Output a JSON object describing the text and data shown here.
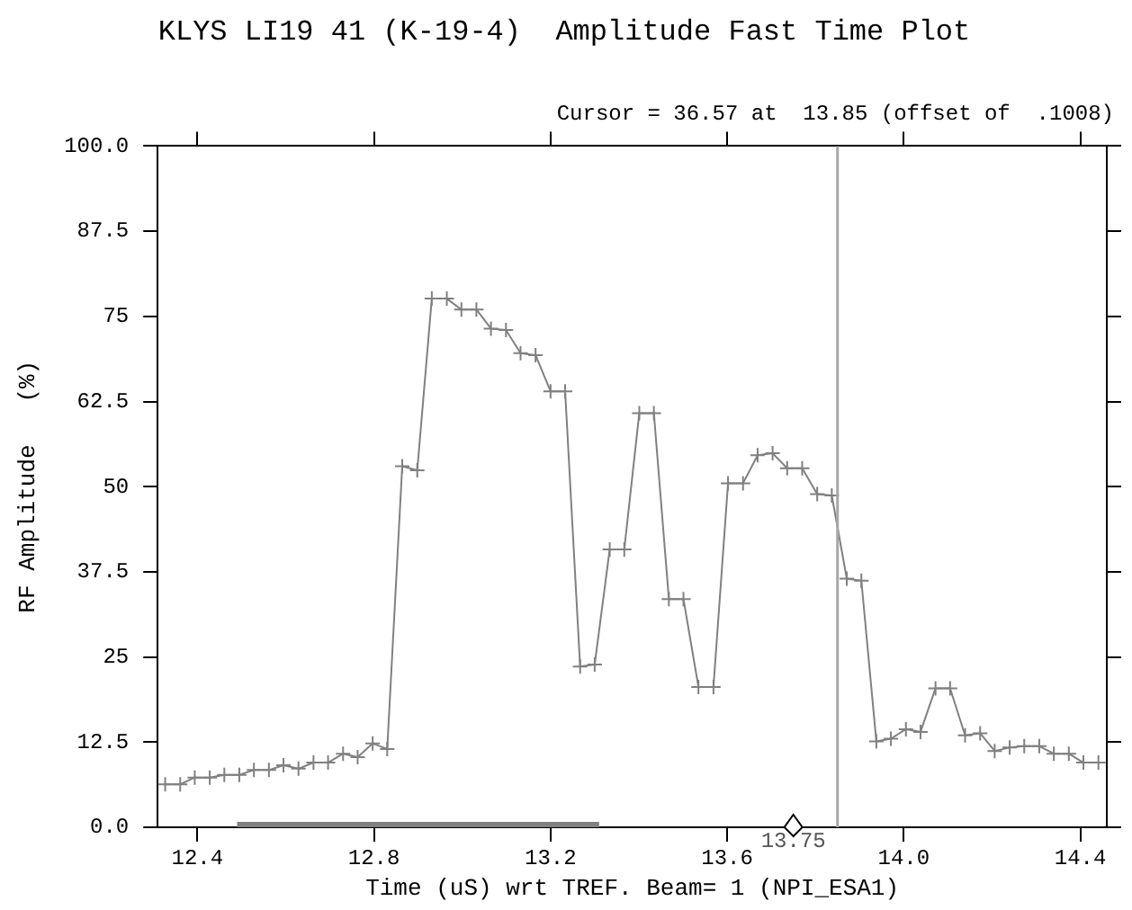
{
  "chart_data": {
    "type": "line",
    "title": "KLYS LI19 41 (K-19-4)  Amplitude Fast Time Plot",
    "xlabel": "Time (uS) wrt TREF. Beam= 1 (NPI_ESA1)",
    "ylabel": "RF Amplitude   (%)",
    "x": [
      12.327,
      12.361,
      12.394,
      12.428,
      12.461,
      12.495,
      12.528,
      12.562,
      12.595,
      12.629,
      12.663,
      12.696,
      12.73,
      12.763,
      12.797,
      12.83,
      12.864,
      12.898,
      12.931,
      12.965,
      12.998,
      13.032,
      13.065,
      13.099,
      13.132,
      13.166,
      13.2,
      13.233,
      13.267,
      13.3,
      13.334,
      13.367,
      13.401,
      13.434,
      13.468,
      13.501,
      13.535,
      13.569,
      13.602,
      13.636,
      13.669,
      13.703,
      13.736,
      13.77,
      13.804,
      13.837,
      13.871,
      13.904,
      13.938,
      13.971,
      14.005,
      14.038,
      14.072,
      14.105,
      14.139,
      14.173,
      14.206,
      14.24,
      14.273,
      14.307,
      14.34,
      14.374,
      14.407,
      14.441
    ],
    "series": [
      {
        "color": "#808080",
        "values": [
          6.3,
          6.3,
          7.3,
          7.3,
          7.7,
          7.7,
          8.4,
          8.4,
          9.1,
          8.6,
          9.5,
          9.5,
          10.8,
          10.3,
          12.3,
          11.5,
          53.0,
          52.4,
          77.6,
          77.6,
          76.0,
          76.0,
          73.2,
          73.0,
          69.6,
          69.3,
          64.0,
          64.0,
          23.6,
          23.9,
          40.8,
          40.8,
          60.8,
          60.8,
          33.5,
          33.5,
          20.6,
          20.6,
          50.5,
          50.5,
          54.6,
          54.9,
          52.7,
          52.7,
          48.9,
          48.7,
          36.5,
          36.2,
          12.6,
          13.0,
          14.4,
          14.0,
          20.4,
          20.4,
          13.5,
          13.8,
          11.2,
          11.7,
          11.9,
          11.9,
          10.8,
          10.8,
          9.5,
          9.5
        ]
      },
      {
        "type": "line",
        "x": [
          12.49,
          13.31
        ],
        "values": [
          0,
          0
        ],
        "color": "#808080",
        "marker": "none"
      }
    ],
    "xlim": [
      12.31,
      14.46
    ],
    "xticks": [
      12.4,
      12.8,
      13.2,
      13.6,
      {
        "value": 14,
        "label": "14.0"
      },
      14.4
    ],
    "ylim": [
      0,
      100
    ],
    "yticks": [
      {
        "value": 0,
        "label": "0.0"
      },
      12.5,
      25,
      37.5,
      50,
      62.5,
      75,
      87.5,
      {
        "value": 100,
        "label": "100.0"
      }
    ],
    "ref_lines": [
      {
        "axis": "x",
        "value": 13.85,
        "color": "#a8a8a8"
      }
    ],
    "annotations": [
      "Cursor = 36.57 at  13.85 (offset of  .1008)",
      {
        "text": "13.75",
        "x": 13.75,
        "y": 0
      }
    ],
    "grid": false,
    "legend": false,
    "marker": "cross",
    "line_style": "solid"
  }
}
